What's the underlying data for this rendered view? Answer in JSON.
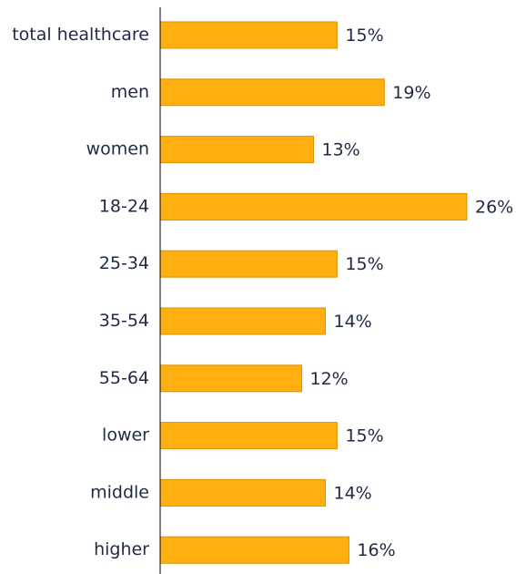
{
  "chart_data": {
    "type": "bar",
    "orientation": "horizontal",
    "categories": [
      "total healthcare",
      "men",
      "women",
      "18-24",
      "25-34",
      "35-54",
      "55-64",
      "lower",
      "middle",
      "higher"
    ],
    "values": [
      15,
      19,
      13,
      26,
      15,
      14,
      12,
      15,
      14,
      16
    ],
    "value_labels": [
      "15%",
      "19%",
      "13%",
      "26%",
      "15%",
      "14%",
      "12%",
      "15%",
      "14%",
      "16%"
    ],
    "xlim": [
      0,
      26
    ],
    "grid": false,
    "legend": "none",
    "colors": {
      "bar_fill": "#FFB010",
      "bar_stroke": "#D99200",
      "axis": "#000000",
      "text": "#1f2a44"
    }
  }
}
